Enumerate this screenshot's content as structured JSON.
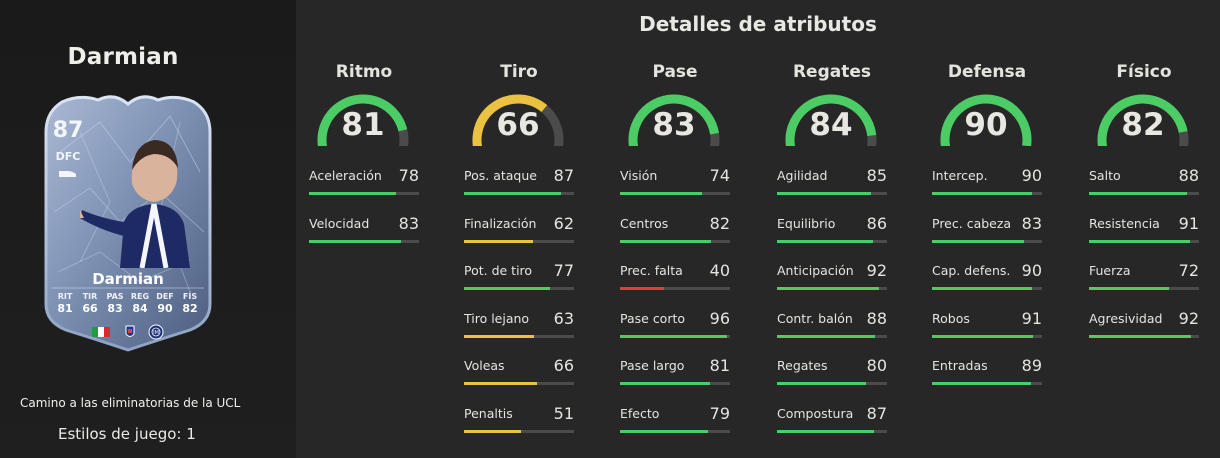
{
  "player": {
    "name": "Darmian",
    "card_name": "Darmian",
    "overall": "87",
    "position": "DFC",
    "card_stats": [
      {
        "label": "RIT",
        "value": "81"
      },
      {
        "label": "TIR",
        "value": "66"
      },
      {
        "label": "PAS",
        "value": "83"
      },
      {
        "label": "REG",
        "value": "84"
      },
      {
        "label": "DEF",
        "value": "90"
      },
      {
        "label": "FÍS",
        "value": "82"
      }
    ],
    "card_flag_icons": [
      "italy-flag-icon",
      "serie-a-icon",
      "inter-badge-icon"
    ]
  },
  "promo_subtitle": "Camino a las eliminatorias de la UCL",
  "playstyles_text": "Estilos de juego: 1",
  "section_title": "Detalles de atributos",
  "colors": {
    "green": "#4ccc64",
    "yellow": "#ebc142",
    "red": "#e63a3c",
    "track": "#4a4b4a"
  },
  "categories": [
    {
      "name": "Ritmo",
      "value": "81",
      "stats": [
        {
          "label": "Aceleración",
          "value": "78"
        },
        {
          "label": "Velocidad",
          "value": "83"
        }
      ]
    },
    {
      "name": "Tiro",
      "value": "66",
      "stats": [
        {
          "label": "Pos. ataque",
          "value": "87"
        },
        {
          "label": "Finalización",
          "value": "62"
        },
        {
          "label": "Pot. de tiro",
          "value": "77"
        },
        {
          "label": "Tiro lejano",
          "value": "63"
        },
        {
          "label": "Voleas",
          "value": "66"
        },
        {
          "label": "Penaltis",
          "value": "51"
        }
      ]
    },
    {
      "name": "Pase",
      "value": "83",
      "stats": [
        {
          "label": "Visión",
          "value": "74"
        },
        {
          "label": "Centros",
          "value": "82"
        },
        {
          "label": "Prec. falta",
          "value": "40"
        },
        {
          "label": "Pase corto",
          "value": "96"
        },
        {
          "label": "Pase largo",
          "value": "81"
        },
        {
          "label": "Efecto",
          "value": "79"
        }
      ]
    },
    {
      "name": "Regates",
      "value": "84",
      "stats": [
        {
          "label": "Agilidad",
          "value": "85"
        },
        {
          "label": "Equilibrio",
          "value": "86"
        },
        {
          "label": "Anticipación",
          "value": "92"
        },
        {
          "label": "Contr. balón",
          "value": "88"
        },
        {
          "label": "Regates",
          "value": "80"
        },
        {
          "label": "Compostura",
          "value": "87"
        }
      ]
    },
    {
      "name": "Defensa",
      "value": "90",
      "stats": [
        {
          "label": "Intercep.",
          "value": "90"
        },
        {
          "label": "Prec. cabeza",
          "value": "83"
        },
        {
          "label": "Cap. defens.",
          "value": "90"
        },
        {
          "label": "Robos",
          "value": "91"
        },
        {
          "label": "Entradas",
          "value": "89"
        }
      ]
    },
    {
      "name": "Físico",
      "value": "82",
      "stats": [
        {
          "label": "Salto",
          "value": "88"
        },
        {
          "label": "Resistencia",
          "value": "91"
        },
        {
          "label": "Fuerza",
          "value": "72"
        },
        {
          "label": "Agresividad",
          "value": "92"
        }
      ]
    }
  ]
}
